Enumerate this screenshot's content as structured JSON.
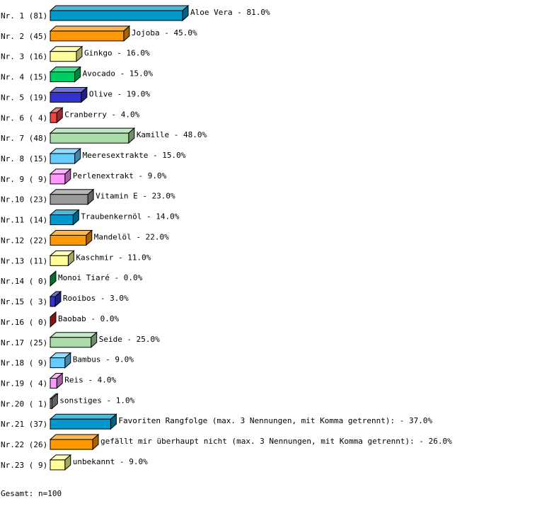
{
  "chart_data": {
    "type": "bar",
    "orientation": "horizontal",
    "style": "3d",
    "categories": [
      "Nr. 1",
      "Nr. 2",
      "Nr. 3",
      "Nr. 4",
      "Nr. 5",
      "Nr. 6",
      "Nr. 7",
      "Nr. 8",
      "Nr. 9",
      "Nr.10",
      "Nr.11",
      "Nr.12",
      "Nr.13",
      "Nr.14",
      "Nr.15",
      "Nr.16",
      "Nr.17",
      "Nr.18",
      "Nr.19",
      "Nr.20",
      "Nr.21",
      "Nr.22",
      "Nr.23"
    ],
    "counts": [
      81,
      45,
      16,
      15,
      19,
      4,
      48,
      15,
      9,
      23,
      14,
      22,
      11,
      0,
      3,
      0,
      25,
      9,
      4,
      1,
      37,
      26,
      9
    ],
    "category_labels": [
      "Nr. 1 (81)",
      "Nr. 2 (45)",
      "Nr. 3 (16)",
      "Nr. 4 (15)",
      "Nr. 5 (19)",
      "Nr. 6 ( 4)",
      "Nr. 7 (48)",
      "Nr. 8 (15)",
      "Nr. 9 ( 9)",
      "Nr.10 (23)",
      "Nr.11 (14)",
      "Nr.12 (22)",
      "Nr.13 (11)",
      "Nr.14 ( 0)",
      "Nr.15 ( 3)",
      "Nr.16 ( 0)",
      "Nr.17 (25)",
      "Nr.18 ( 9)",
      "Nr.19 ( 4)",
      "Nr.20 ( 1)",
      "Nr.21 (37)",
      "Nr.22 (26)",
      "Nr.23 ( 9)"
    ],
    "values": [
      81.0,
      45.0,
      16.0,
      15.0,
      19.0,
      4.0,
      48.0,
      15.0,
      9.0,
      23.0,
      14.0,
      22.0,
      11.0,
      0.0,
      3.0,
      0.0,
      25.0,
      9.0,
      4.0,
      1.0,
      37.0,
      26.0,
      9.0
    ],
    "data_labels": [
      "Aloe Vera -  81.0%",
      "Jojoba -  45.0%",
      "Ginkgo -  16.0%",
      "Avocado -  15.0%",
      "Olive -  19.0%",
      "Cranberry -   4.0%",
      "Kamille -  48.0%",
      "Meeresextrakte -  15.0%",
      "Perlenextrakt -   9.0%",
      "Vitamin E -  23.0%",
      "Traubenkernöl -  14.0%",
      "Mandelöl -  22.0%",
      "Kaschmir -  11.0%",
      "Monoi Tiaré -   0.0%",
      "Rooibos -   3.0%",
      "Baobab -   0.0%",
      "Seide -  25.0%",
      "Bambus -   9.0%",
      "Reis -   4.0%",
      "sonstiges -   1.0%",
      "Favoriten Rangfolge (max. 3 Nennungen, mit Komma getrennt): -  37.0%",
      "gefällt mir überhaupt nicht (max. 3 Nennungen, mit Komma getrennt): -  26.0%",
      "unbekannt -   9.0%"
    ],
    "colors": [
      "#0099cc",
      "#ff9900",
      "#ffff99",
      "#00cc66",
      "#3333cc",
      "#ee4444",
      "#aaddaa",
      "#66ccff",
      "#ff99ff",
      "#999999",
      "#0099cc",
      "#ff9900",
      "#ffff99",
      "#00aa44",
      "#3333cc",
      "#cc2222",
      "#aaddaa",
      "#66ccff",
      "#ff99ff",
      "#999999",
      "#0099cc",
      "#ff9900",
      "#ffff99"
    ],
    "xlim": [
      0,
      100
    ],
    "grid": false,
    "legend": "none"
  },
  "footer": {
    "total": "Gesamt: n=100"
  }
}
